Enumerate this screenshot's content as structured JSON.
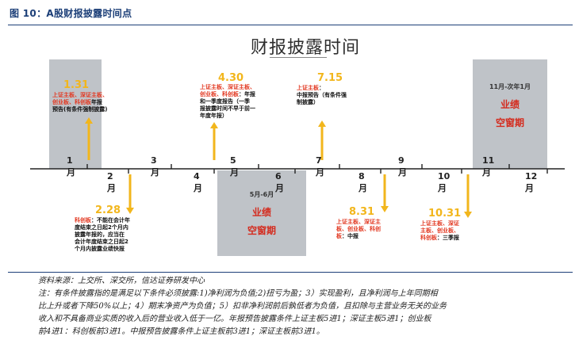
{
  "figure": {
    "title": "图 10：A股财报披露时间点"
  },
  "diagram": {
    "heading": "财报披露时间",
    "months": [
      "1月",
      "2月",
      "3月",
      "4月",
      "5月",
      "6月",
      "7月",
      "8月",
      "9月",
      "10月",
      "11月",
      "12月"
    ],
    "events": [
      {
        "date": "1.31",
        "lines": [
          [
            {
              "t": "上证主板、深证主板、",
              "c": "hl"
            }
          ],
          [
            {
              "t": "创业板、科创板",
              "c": "hl"
            },
            {
              "t": "年报",
              "c": ""
            }
          ],
          [
            {
              "t": "预告(有条件强制披露)",
              "c": ""
            }
          ]
        ]
      },
      {
        "date": "2.28",
        "lines": [
          [
            {
              "t": "科创板",
              "c": "hl"
            },
            {
              "t": "：不能在会计年",
              "c": ""
            }
          ],
          [
            {
              "t": "度结束之日起2个月内",
              "c": ""
            }
          ],
          [
            {
              "t": "披露年报的，应当在",
              "c": ""
            }
          ],
          [
            {
              "t": "会计年度结束之日起2",
              "c": ""
            }
          ],
          [
            {
              "t": "个月内披露业绩快报",
              "c": ""
            }
          ]
        ]
      },
      {
        "date": "4.30",
        "lines": [
          [
            {
              "t": "上证主板、深证主板、",
              "c": "hl"
            }
          ],
          [
            {
              "t": "创业板、科创板",
              "c": "hl"
            },
            {
              "t": "：年报",
              "c": ""
            }
          ],
          [
            {
              "t": "和一季度报告（一季",
              "c": ""
            }
          ],
          [
            {
              "t": "报披露时间不早于前一",
              "c": ""
            }
          ],
          [
            {
              "t": "年度年报）",
              "c": ""
            }
          ]
        ]
      },
      {
        "date": "7.15",
        "lines": [
          [
            {
              "t": "上证主板",
              "c": "hl"
            },
            {
              "t": "：",
              "c": ""
            }
          ],
          [
            {
              "t": "中报预告（有条件强",
              "c": ""
            }
          ],
          [
            {
              "t": "制披露）",
              "c": ""
            }
          ]
        ]
      },
      {
        "date": "8.31",
        "lines": [
          [
            {
              "t": "上证主板、深证主",
              "c": "hl"
            }
          ],
          [
            {
              "t": "板、创业板、科创",
              "c": "hl"
            }
          ],
          [
            {
              "t": "板",
              "c": "hl"
            },
            {
              "t": "：中报",
              "c": ""
            }
          ]
        ]
      },
      {
        "date": "10.31",
        "lines": [
          [
            {
              "t": "上证主板、深证",
              "c": "hl"
            }
          ],
          [
            {
              "t": "主板、创业板、",
              "c": "hl"
            }
          ],
          [
            {
              "t": "科创板",
              "c": "hl"
            },
            {
              "t": "：三季报",
              "c": ""
            }
          ]
        ]
      }
    ],
    "windows": [
      {
        "range": "5月-6月",
        "label1": "业绩",
        "label2": "空窗期"
      },
      {
        "range": "11月-次年1月",
        "label1": "业绩",
        "label2": "空窗期"
      }
    ],
    "colors": {
      "axis": "#222222",
      "arrow": "#f2b61c",
      "window_fill": "#bfc3c8",
      "highlight": "#e23a23",
      "title": "#1c3f78"
    }
  },
  "notes": {
    "lines": [
      "资料来源：上交所、深交所，信达证券研发中心",
      "注：有条件披露指的是满足以下条件必须披露:1)净利润为负值;2)扭亏为盈；3）实现盈利，且净利润与上年同期相",
      "比上升或者下降50%以上；4）期末净资产为负值；5）扣非净利润前后孰低者为负值，且扣除与主营业务无关的业务",
      "收入和不具备商业实质的收入后的营业收入低于一亿。年报预告披露条件上证主板5进1；深证主板5进1；创业板",
      "前4进1：科创板前3进1。中报预告披露条件上证主板前3进1；深证主板前3进1。"
    ]
  }
}
